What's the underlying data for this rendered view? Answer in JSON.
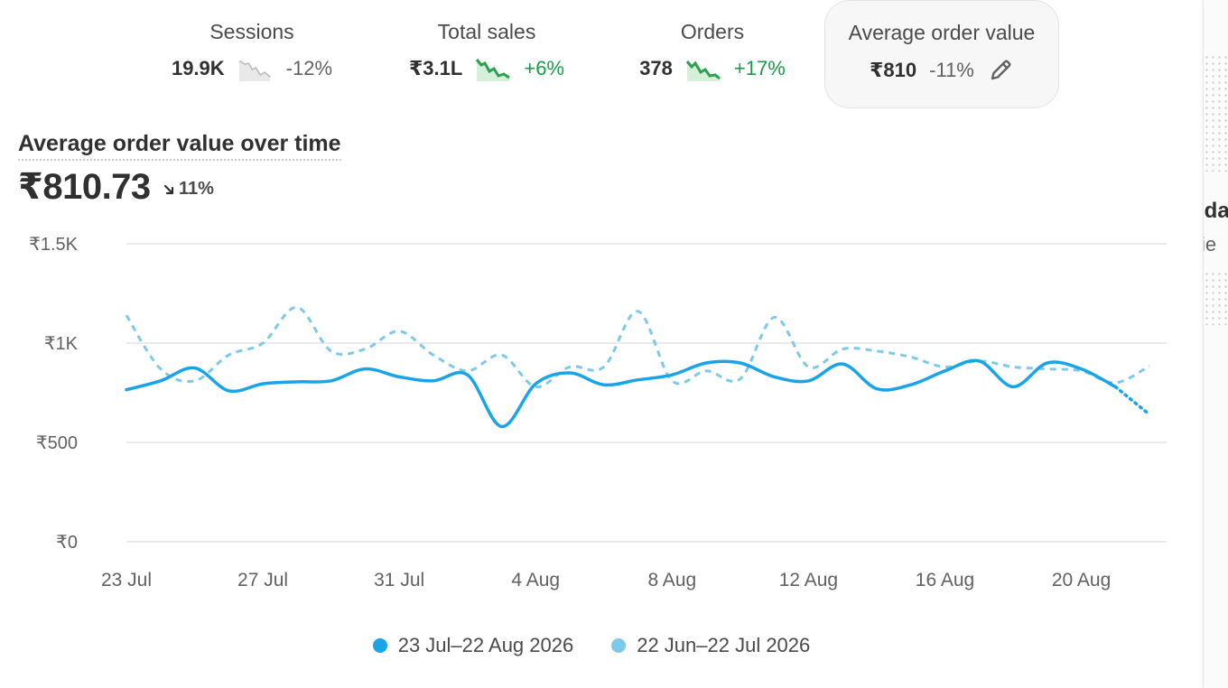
{
  "metrics": [
    {
      "id": "sessions",
      "label": "Sessions",
      "value": "19.9K",
      "change": "-12%",
      "trend": "down",
      "color": "#c8c8c8"
    },
    {
      "id": "sales",
      "label": "Total sales",
      "value": "₹3.1L",
      "change": "+6%",
      "trend": "up",
      "color": "#2aa14d"
    },
    {
      "id": "orders",
      "label": "Orders",
      "value": "378",
      "change": "+17%",
      "trend": "up",
      "color": "#2aa14d"
    },
    {
      "id": "aov",
      "label": "Average order value",
      "value": "₹810",
      "change": "-11%",
      "trend": "down",
      "selected": true
    }
  ],
  "chart_header": {
    "title": "Average order value over time",
    "value": "₹810.73",
    "delta": "11%",
    "delta_direction": "down"
  },
  "chart_data": {
    "type": "line",
    "y_ticks": [
      "₹1.5K",
      "₹1K",
      "₹500",
      "₹0"
    ],
    "ylim": [
      0,
      1500
    ],
    "x_ticks": [
      "23 Jul",
      "27 Jul",
      "31 Jul",
      "4 Aug",
      "8 Aug",
      "12 Aug",
      "16 Aug",
      "20 Aug"
    ],
    "grid": true,
    "legend_position": "bottom",
    "series": [
      {
        "name": "23 Jul–22 Aug 2026",
        "color": "#1aa4e8",
        "style": "solid",
        "x": [
          "23 Jul",
          "24 Jul",
          "25 Jul",
          "26 Jul",
          "27 Jul",
          "28 Jul",
          "29 Jul",
          "30 Jul",
          "31 Jul",
          "1 Aug",
          "2 Aug",
          "3 Aug",
          "4 Aug",
          "5 Aug",
          "6 Aug",
          "7 Aug",
          "8 Aug",
          "9 Aug",
          "10 Aug",
          "11 Aug",
          "12 Aug",
          "13 Aug",
          "14 Aug",
          "15 Aug",
          "16 Aug",
          "17 Aug",
          "18 Aug",
          "19 Aug",
          "20 Aug",
          "21 Aug",
          "22 Aug"
        ],
        "values": [
          765,
          810,
          875,
          760,
          795,
          805,
          810,
          870,
          830,
          810,
          840,
          580,
          795,
          850,
          790,
          815,
          840,
          900,
          900,
          830,
          810,
          895,
          770,
          790,
          860,
          910,
          780,
          900,
          870,
          780,
          640
        ]
      },
      {
        "name": "22 Jun–22 Jul 2026",
        "color": "#7dc9ea",
        "style": "dashed",
        "x": [
          "23 Jul",
          "24 Jul",
          "25 Jul",
          "26 Jul",
          "27 Jul",
          "28 Jul",
          "29 Jul",
          "30 Jul",
          "31 Jul",
          "1 Aug",
          "2 Aug",
          "3 Aug",
          "4 Aug",
          "5 Aug",
          "6 Aug",
          "7 Aug",
          "8 Aug",
          "9 Aug",
          "10 Aug",
          "11 Aug",
          "12 Aug",
          "13 Aug",
          "14 Aug",
          "15 Aug",
          "16 Aug",
          "17 Aug",
          "18 Aug",
          "19 Aug",
          "20 Aug",
          "21 Aug",
          "22 Aug"
        ],
        "values": [
          1140,
          870,
          810,
          940,
          1000,
          1180,
          960,
          970,
          1060,
          940,
          860,
          940,
          780,
          880,
          880,
          1160,
          810,
          860,
          820,
          1130,
          880,
          970,
          960,
          930,
          880,
          910,
          880,
          870,
          860,
          800,
          885
        ]
      }
    ]
  },
  "side_panel": {
    "text_1": "oda",
    "text_2": "vie"
  }
}
